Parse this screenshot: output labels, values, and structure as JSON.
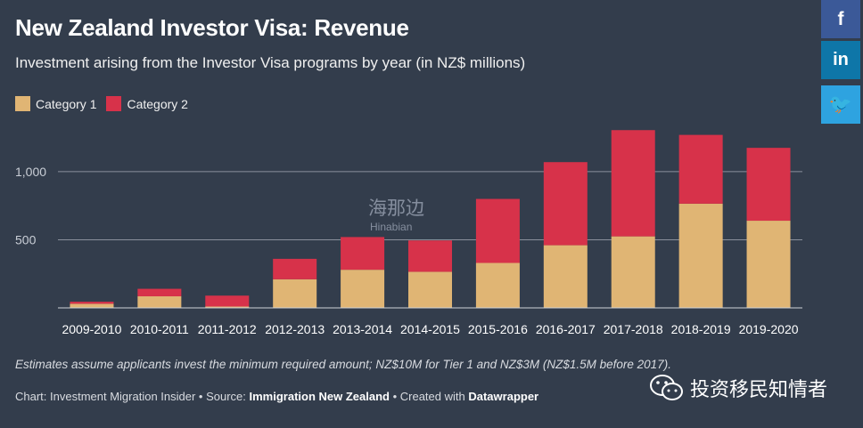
{
  "title": "New Zealand Investor Visa: Revenue",
  "subtitle": "Investment arising from the Investor Visa programs by year (in NZ$ millions)",
  "note": "Estimates assume applicants invest the minimum required amount; NZ$10M for Tier 1 and NZ$3M (NZ$1.5M before 2017).",
  "credit": {
    "chart_label": "Chart: Investment Migration Insider • Source: ",
    "source": "Immigration New Zealand",
    "created_label": " • Created with ",
    "tool": "Datawrapper"
  },
  "share": {
    "facebook": "f",
    "linkedin": "in",
    "twitter": "🐦"
  },
  "watermark": {
    "cn": "海那边",
    "en": "Hinabian"
  },
  "wechat_label": "投资移民知情者",
  "colors": {
    "category1": "#e0b574",
    "category2": "#d7324a",
    "grid": "#8a919c"
  },
  "chart_data": {
    "type": "bar",
    "stacked": true,
    "categories": [
      "2009-2010",
      "2010-2011",
      "2011-2012",
      "2012-2013",
      "2013-2014",
      "2014-2015",
      "2015-2016",
      "2016-2017",
      "2017-2018",
      "2018-2019",
      "2019-2020"
    ],
    "series": [
      {
        "name": "Category 1",
        "values": [
          30,
          85,
          10,
          210,
          280,
          265,
          330,
          460,
          525,
          765,
          640
        ]
      },
      {
        "name": "Category 2",
        "values": [
          15,
          55,
          80,
          150,
          240,
          230,
          470,
          610,
          780,
          505,
          535
        ]
      }
    ],
    "ylim": [
      0,
      1300
    ],
    "yticks": [
      500,
      1000
    ],
    "ytick_labels": [
      "500",
      "1,000"
    ],
    "title": "New Zealand Investor Visa: Revenue",
    "xlabel": "",
    "ylabel": ""
  }
}
